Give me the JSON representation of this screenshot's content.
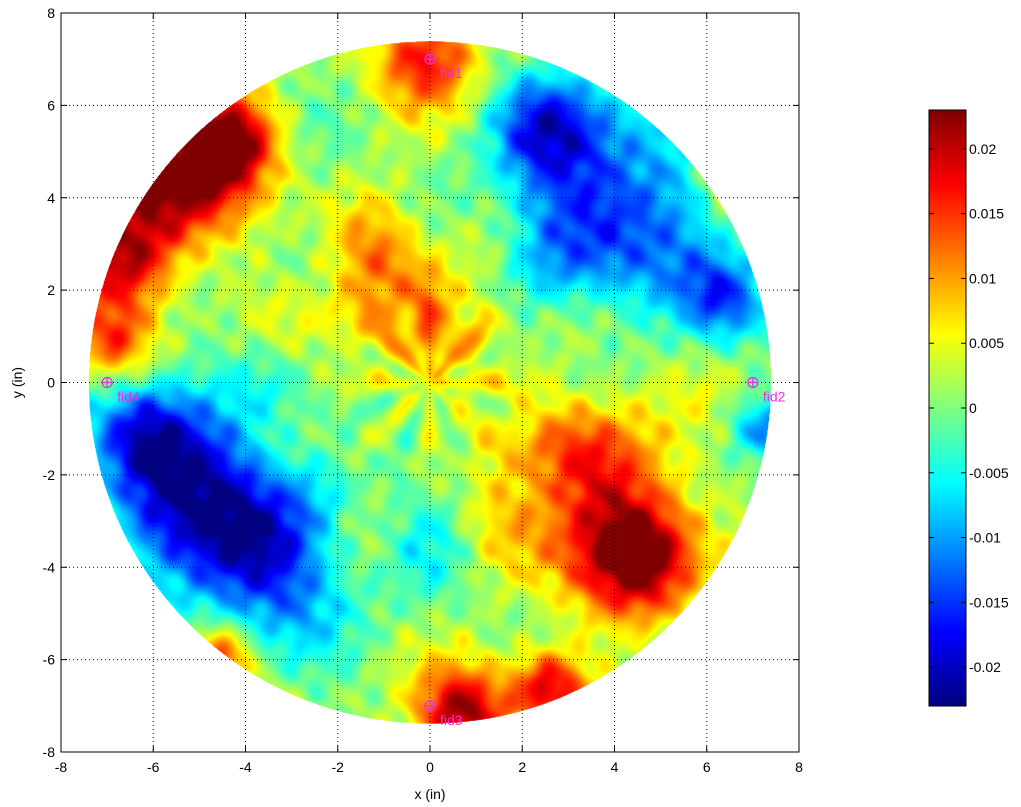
{
  "chart_data": {
    "type": "heatmap",
    "title": "",
    "xlabel": "x (in)",
    "ylabel": "y (in)",
    "xlim": [
      -8,
      8
    ],
    "ylim": [
      -8,
      8
    ],
    "xticks": [
      -8,
      -6,
      -4,
      -2,
      0,
      2,
      4,
      6,
      8
    ],
    "yticks": [
      -8,
      -6,
      -4,
      -2,
      0,
      2,
      4,
      6,
      8
    ],
    "grid": true,
    "colormap": "jet",
    "clim": [
      -0.023,
      0.023
    ],
    "colorbar": {
      "ticks": [
        -0.02,
        -0.015,
        -0.01,
        -0.005,
        0,
        0.005,
        0.01,
        0.015,
        0.02
      ],
      "tick_labels": [
        "-0.02",
        "-0.015",
        "-0.01",
        "-0.005",
        "0",
        "0.005",
        "0.01",
        "0.015",
        "0.02"
      ]
    },
    "disk_radius": 7.4,
    "fiducials": [
      {
        "name": "fid1",
        "x": 0,
        "y": 7
      },
      {
        "name": "fid2",
        "x": 7,
        "y": 0
      },
      {
        "name": "fid3",
        "x": 0,
        "y": -7
      },
      {
        "name": "fid4",
        "x": -7,
        "y": 0
      }
    ],
    "fiducial_color": "#e632e6",
    "field_features": [
      {
        "x": -5.6,
        "y": 4.4,
        "value": 0.022,
        "spread": 1.0
      },
      {
        "x": -6.6,
        "y": 2.6,
        "value": 0.018,
        "spread": 0.8
      },
      {
        "x": -4.3,
        "y": 5.3,
        "value": 0.02,
        "spread": 0.7
      },
      {
        "x": -6.9,
        "y": 0.9,
        "value": 0.013,
        "spread": 0.6
      },
      {
        "x": -5.0,
        "y": -2.4,
        "value": -0.019,
        "spread": 1.4
      },
      {
        "x": -3.8,
        "y": -3.8,
        "value": -0.016,
        "spread": 1.0
      },
      {
        "x": -6.2,
        "y": -1.0,
        "value": -0.015,
        "spread": 0.8
      },
      {
        "x": 3.9,
        "y": 3.8,
        "value": -0.018,
        "spread": 1.5
      },
      {
        "x": 2.5,
        "y": 5.6,
        "value": -0.013,
        "spread": 0.8
      },
      {
        "x": 6.4,
        "y": 1.8,
        "value": -0.014,
        "spread": 0.7
      },
      {
        "x": 3.4,
        "y": -2.4,
        "value": 0.015,
        "spread": 1.5
      },
      {
        "x": 4.6,
        "y": -3.8,
        "value": 0.017,
        "spread": 0.9
      },
      {
        "x": 0.7,
        "y": -7.2,
        "value": 0.021,
        "spread": 0.7
      },
      {
        "x": 2.6,
        "y": -6.6,
        "value": 0.018,
        "spread": 0.6
      },
      {
        "x": -0.1,
        "y": 7.1,
        "value": 0.015,
        "spread": 0.8
      },
      {
        "x": 6.8,
        "y": 4.5,
        "value": 0.014,
        "spread": 0.6
      },
      {
        "x": -1.0,
        "y": 2.3,
        "value": 0.01,
        "spread": 1.1
      },
      {
        "x": 0.3,
        "y": 1.0,
        "value": 0.007,
        "spread": 0.8
      },
      {
        "x": 0.0,
        "y": -3.5,
        "value": -0.005,
        "spread": 1.0
      },
      {
        "x": -2.7,
        "y": -5.0,
        "value": -0.004,
        "spread": 0.9
      },
      {
        "x": 7.2,
        "y": -1.0,
        "value": -0.012,
        "spread": 0.5
      },
      {
        "x": -4.6,
        "y": -6.0,
        "value": 0.016,
        "spread": 0.5
      }
    ]
  }
}
